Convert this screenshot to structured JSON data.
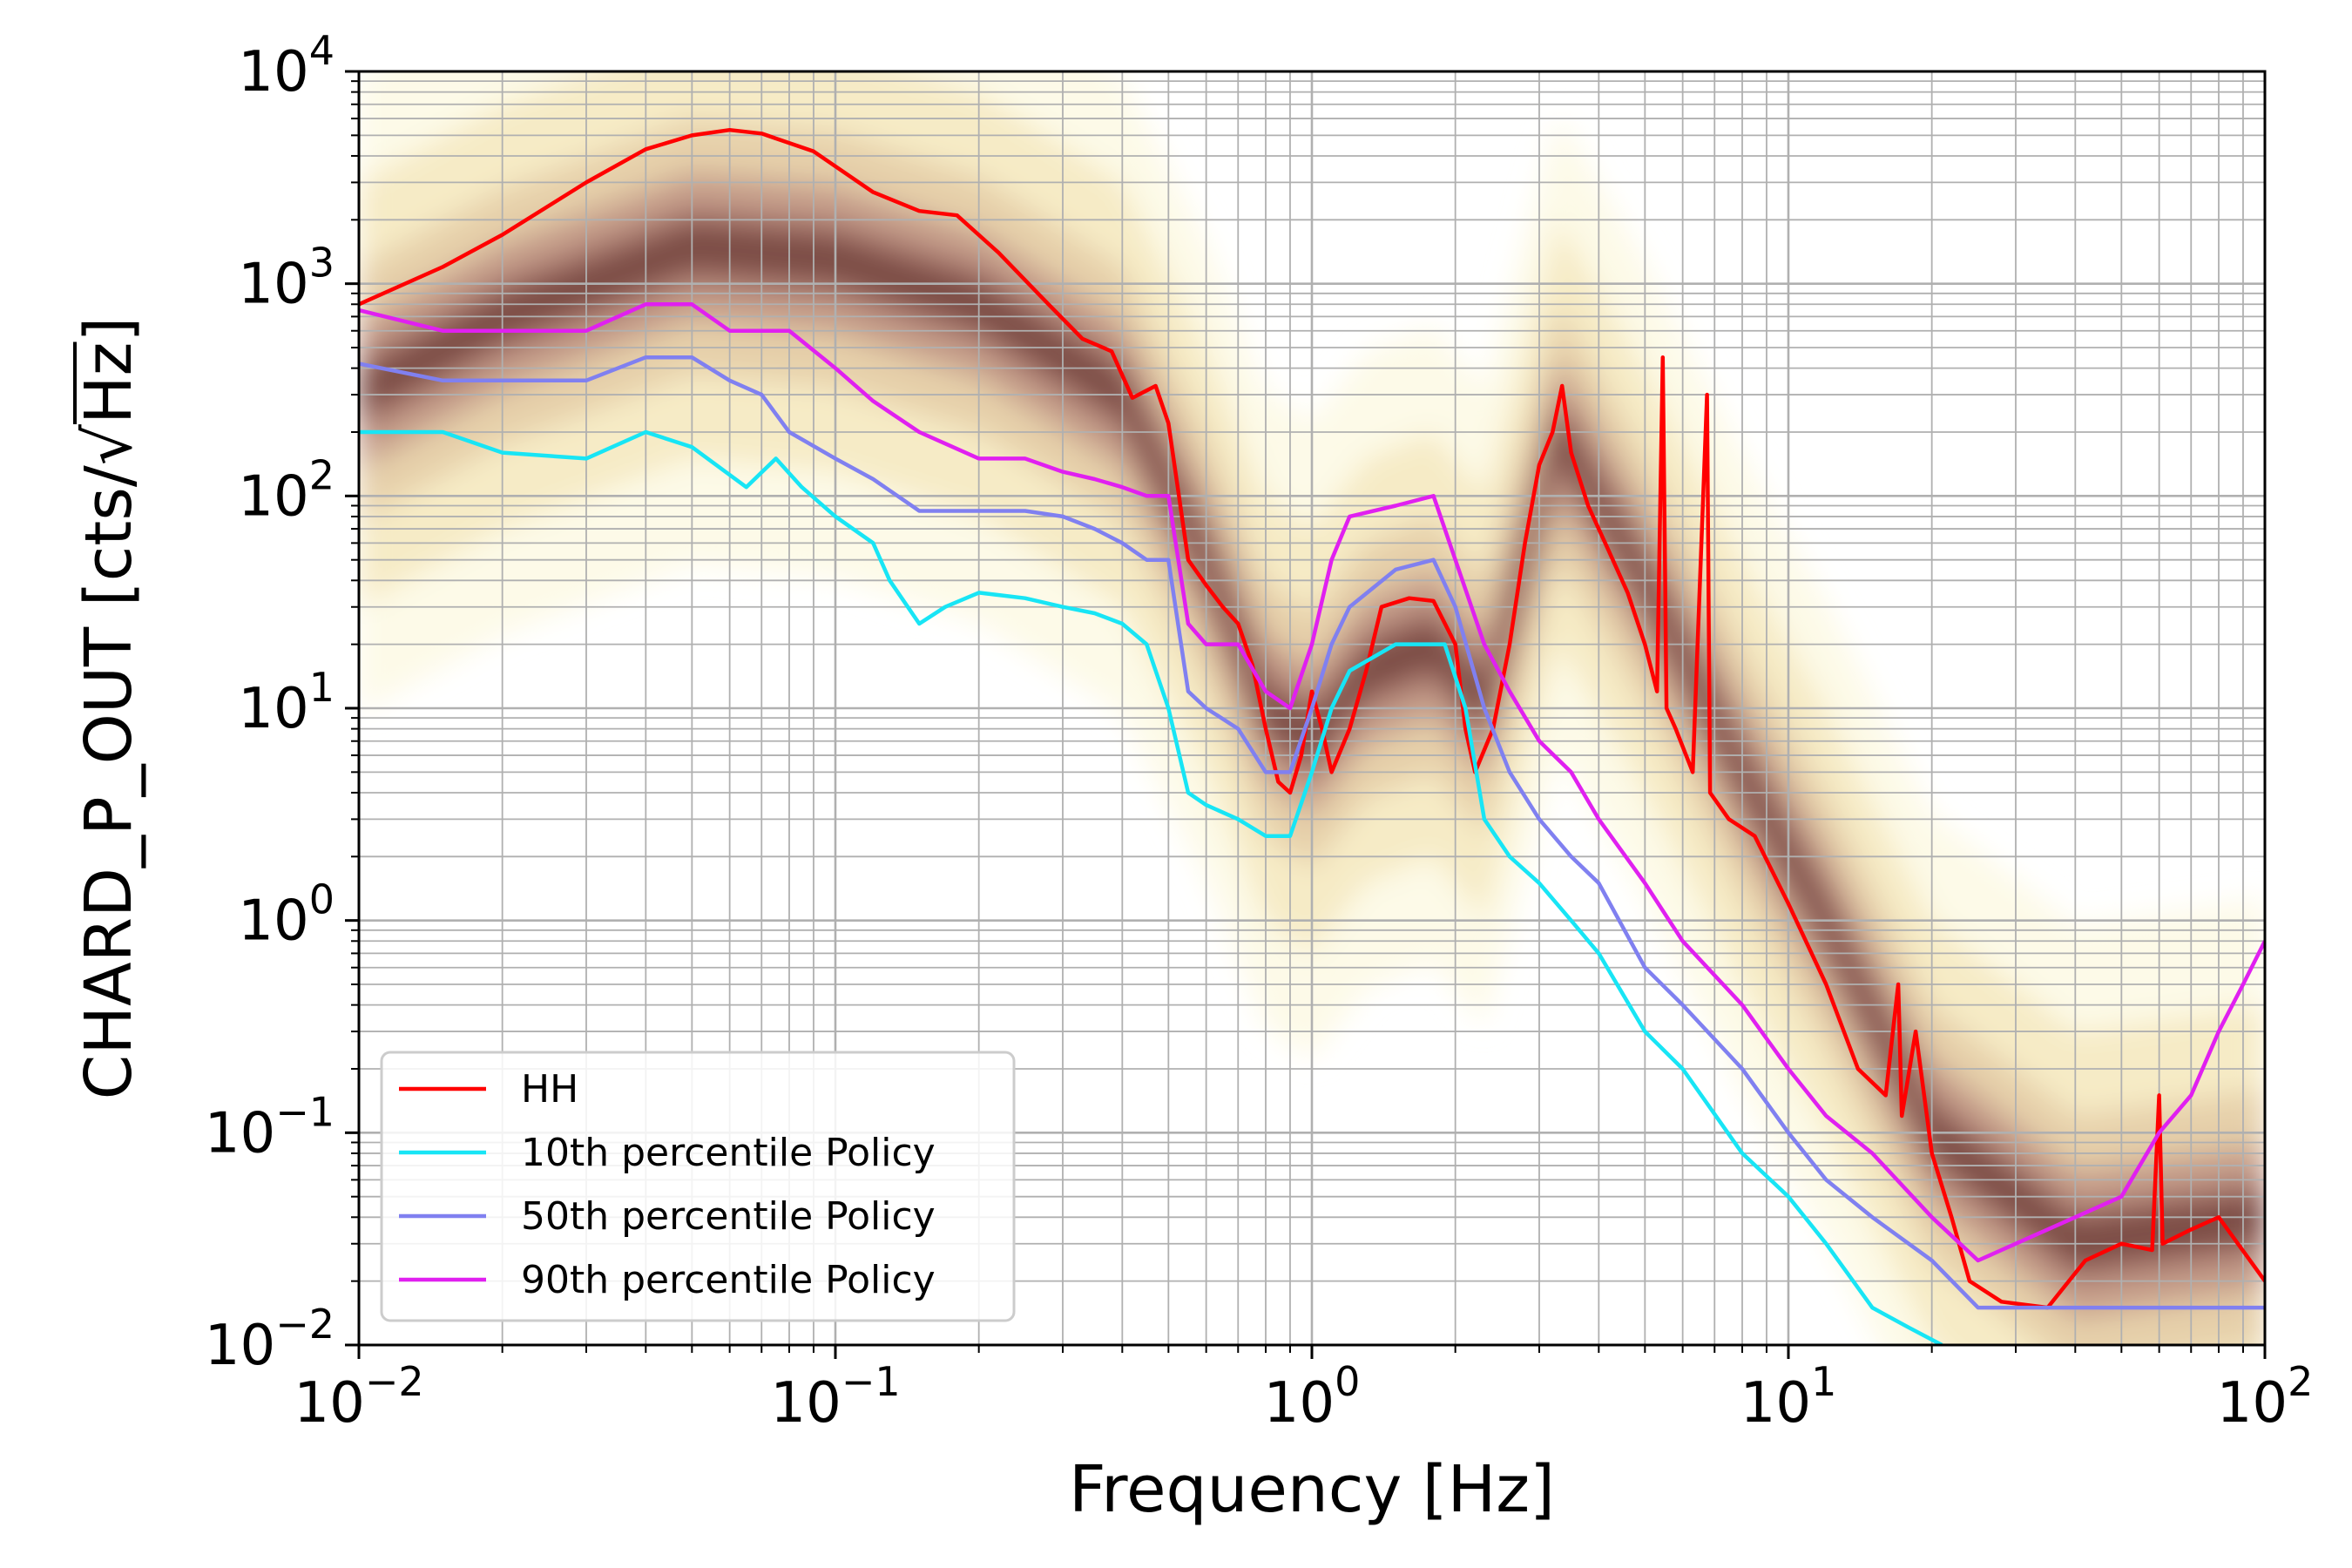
{
  "chart_data": {
    "type": "line",
    "title": "",
    "xlabel": "Frequency [Hz]",
    "ylabel_prefix": "CHARD_P_OUT [cts/",
    "ylabel_radical": "√",
    "ylabel_radicand": "Hz",
    "ylabel_suffix": "]",
    "xscale": "log",
    "yscale": "log",
    "xlim": [
      0.01,
      100
    ],
    "ylim": [
      0.01,
      10000
    ],
    "grid": true,
    "legend_position": "bottom-left",
    "x_ticks": [
      {
        "base": "10",
        "exp": "−2",
        "value": 0.01
      },
      {
        "base": "10",
        "exp": "−1",
        "value": 0.1
      },
      {
        "base": "10",
        "exp": "0",
        "value": 1
      },
      {
        "base": "10",
        "exp": "1",
        "value": 10
      },
      {
        "base": "10",
        "exp": "2",
        "value": 100
      }
    ],
    "y_ticks": [
      {
        "base": "10",
        "exp": "−2",
        "value": 0.01
      },
      {
        "base": "10",
        "exp": "−1",
        "value": 0.1
      },
      {
        "base": "10",
        "exp": "0",
        "value": 1
      },
      {
        "base": "10",
        "exp": "1",
        "value": 10
      },
      {
        "base": "10",
        "exp": "2",
        "value": 100
      },
      {
        "base": "10",
        "exp": "3",
        "value": 1000
      },
      {
        "base": "10",
        "exp": "4",
        "value": 10000
      }
    ],
    "background_density": {
      "description": "spectrogram histogram",
      "colormap": [
        "#fdf9e6",
        "#f3e6b8",
        "#e0c49e",
        "#b98a7f",
        "#8d5a54",
        "#5e2f2b"
      ],
      "ridge": [
        {
          "x": 0.01,
          "y": 300
        },
        {
          "x": 0.02,
          "y": 700
        },
        {
          "x": 0.05,
          "y": 1500
        },
        {
          "x": 0.1,
          "y": 1300
        },
        {
          "x": 0.2,
          "y": 800
        },
        {
          "x": 0.4,
          "y": 300
        },
        {
          "x": 0.6,
          "y": 50
        },
        {
          "x": 0.8,
          "y": 10
        },
        {
          "x": 1.0,
          "y": 7
        },
        {
          "x": 1.3,
          "y": 15
        },
        {
          "x": 1.8,
          "y": 20
        },
        {
          "x": 2.3,
          "y": 10
        },
        {
          "x": 3.3,
          "y": 200
        },
        {
          "x": 5.0,
          "y": 40
        },
        {
          "x": 8.0,
          "y": 5
        },
        {
          "x": 12.0,
          "y": 1
        },
        {
          "x": 20.0,
          "y": 0.1
        },
        {
          "x": 40.0,
          "y": 0.03
        },
        {
          "x": 100.0,
          "y": 0.04
        }
      ]
    },
    "series": [
      {
        "name": "HH",
        "color": "#ff0000",
        "points": [
          [
            0.01,
            800
          ],
          [
            0.015,
            1200
          ],
          [
            0.02,
            1700
          ],
          [
            0.03,
            3000
          ],
          [
            0.04,
            4300
          ],
          [
            0.05,
            5000
          ],
          [
            0.06,
            5300
          ],
          [
            0.07,
            5100
          ],
          [
            0.09,
            4200
          ],
          [
            0.12,
            2700
          ],
          [
            0.15,
            2200
          ],
          [
            0.18,
            2100
          ],
          [
            0.22,
            1400
          ],
          [
            0.28,
            800
          ],
          [
            0.33,
            550
          ],
          [
            0.38,
            480
          ],
          [
            0.42,
            290
          ],
          [
            0.47,
            330
          ],
          [
            0.5,
            220
          ],
          [
            0.55,
            50
          ],
          [
            0.6,
            38
          ],
          [
            0.65,
            30
          ],
          [
            0.7,
            25
          ],
          [
            0.75,
            16
          ],
          [
            0.8,
            8
          ],
          [
            0.85,
            4.5
          ],
          [
            0.9,
            4
          ],
          [
            0.95,
            6
          ],
          [
            1.0,
            12
          ],
          [
            1.05,
            8
          ],
          [
            1.1,
            5
          ],
          [
            1.2,
            8
          ],
          [
            1.3,
            15
          ],
          [
            1.4,
            30
          ],
          [
            1.6,
            33
          ],
          [
            1.8,
            32
          ],
          [
            2.0,
            20
          ],
          [
            2.1,
            8
          ],
          [
            2.2,
            5
          ],
          [
            2.4,
            8
          ],
          [
            2.6,
            20
          ],
          [
            2.8,
            60
          ],
          [
            3.0,
            140
          ],
          [
            3.2,
            200
          ],
          [
            3.35,
            330
          ],
          [
            3.5,
            160
          ],
          [
            3.8,
            90
          ],
          [
            4.2,
            55
          ],
          [
            4.6,
            35
          ],
          [
            5.0,
            20
          ],
          [
            5.3,
            12
          ],
          [
            5.45,
            450
          ],
          [
            5.55,
            10
          ],
          [
            5.8,
            8
          ],
          [
            6.3,
            5
          ],
          [
            6.75,
            300
          ],
          [
            6.85,
            4
          ],
          [
            7.5,
            3
          ],
          [
            8.5,
            2.5
          ],
          [
            10.0,
            1.2
          ],
          [
            12.0,
            0.5
          ],
          [
            14.0,
            0.2
          ],
          [
            16.0,
            0.15
          ],
          [
            17.0,
            0.5
          ],
          [
            17.3,
            0.12
          ],
          [
            18.5,
            0.3
          ],
          [
            20.0,
            0.08
          ],
          [
            22.0,
            0.04
          ],
          [
            24.0,
            0.02
          ],
          [
            28.0,
            0.016
          ],
          [
            35.0,
            0.015
          ],
          [
            42.0,
            0.025
          ],
          [
            50.0,
            0.03
          ],
          [
            58.0,
            0.028
          ],
          [
            60.0,
            0.15
          ],
          [
            61.0,
            0.03
          ],
          [
            70.0,
            0.035
          ],
          [
            80.0,
            0.04
          ],
          [
            100.0,
            0.02
          ]
        ]
      },
      {
        "name": "10th percentile Policy",
        "color": "#18e5f5",
        "points": [
          [
            0.01,
            200
          ],
          [
            0.015,
            200
          ],
          [
            0.02,
            160
          ],
          [
            0.03,
            150
          ],
          [
            0.04,
            200
          ],
          [
            0.05,
            170
          ],
          [
            0.065,
            110
          ],
          [
            0.075,
            150
          ],
          [
            0.085,
            110
          ],
          [
            0.1,
            80
          ],
          [
            0.12,
            60
          ],
          [
            0.13,
            40
          ],
          [
            0.15,
            25
          ],
          [
            0.17,
            30
          ],
          [
            0.2,
            35
          ],
          [
            0.25,
            33
          ],
          [
            0.3,
            30
          ],
          [
            0.35,
            28
          ],
          [
            0.4,
            25
          ],
          [
            0.45,
            20
          ],
          [
            0.5,
            10
          ],
          [
            0.55,
            4
          ],
          [
            0.6,
            3.5
          ],
          [
            0.7,
            3.0
          ],
          [
            0.8,
            2.5
          ],
          [
            0.9,
            2.5
          ],
          [
            1.0,
            5
          ],
          [
            1.1,
            10
          ],
          [
            1.2,
            15
          ],
          [
            1.5,
            20
          ],
          [
            1.9,
            20
          ],
          [
            2.1,
            10
          ],
          [
            2.3,
            3
          ],
          [
            2.6,
            2
          ],
          [
            3.0,
            1.5
          ],
          [
            3.5,
            1.0
          ],
          [
            4.0,
            0.7
          ],
          [
            5.0,
            0.3
          ],
          [
            6.0,
            0.2
          ],
          [
            8.0,
            0.08
          ],
          [
            10.0,
            0.05
          ],
          [
            12.0,
            0.03
          ],
          [
            15.0,
            0.015
          ],
          [
            18.0,
            0.012
          ],
          [
            21.0,
            0.01
          ]
        ]
      },
      {
        "name": "50th percentile Policy",
        "color": "#8080f0",
        "points": [
          [
            0.01,
            420
          ],
          [
            0.015,
            350
          ],
          [
            0.02,
            350
          ],
          [
            0.03,
            350
          ],
          [
            0.04,
            450
          ],
          [
            0.05,
            450
          ],
          [
            0.06,
            350
          ],
          [
            0.07,
            300
          ],
          [
            0.08,
            200
          ],
          [
            0.1,
            150
          ],
          [
            0.12,
            120
          ],
          [
            0.15,
            85
          ],
          [
            0.2,
            85
          ],
          [
            0.25,
            85
          ],
          [
            0.3,
            80
          ],
          [
            0.35,
            70
          ],
          [
            0.4,
            60
          ],
          [
            0.45,
            50
          ],
          [
            0.5,
            50
          ],
          [
            0.55,
            12
          ],
          [
            0.6,
            10
          ],
          [
            0.7,
            8
          ],
          [
            0.8,
            5
          ],
          [
            0.9,
            5
          ],
          [
            1.0,
            10
          ],
          [
            1.1,
            20
          ],
          [
            1.2,
            30
          ],
          [
            1.5,
            45
          ],
          [
            1.8,
            50
          ],
          [
            2.0,
            30
          ],
          [
            2.3,
            10
          ],
          [
            2.6,
            5
          ],
          [
            3.0,
            3
          ],
          [
            3.5,
            2
          ],
          [
            4.0,
            1.5
          ],
          [
            5.0,
            0.6
          ],
          [
            6.0,
            0.4
          ],
          [
            8.0,
            0.2
          ],
          [
            10.0,
            0.1
          ],
          [
            12.0,
            0.06
          ],
          [
            15.0,
            0.04
          ],
          [
            20.0,
            0.025
          ],
          [
            25.0,
            0.015
          ],
          [
            40.0,
            0.015
          ],
          [
            100.0,
            0.015
          ]
        ]
      },
      {
        "name": "90th percentile Policy",
        "color": "#e020f0",
        "points": [
          [
            0.01,
            750
          ],
          [
            0.015,
            600
          ],
          [
            0.02,
            600
          ],
          [
            0.03,
            600
          ],
          [
            0.04,
            800
          ],
          [
            0.05,
            800
          ],
          [
            0.06,
            600
          ],
          [
            0.08,
            600
          ],
          [
            0.1,
            400
          ],
          [
            0.12,
            280
          ],
          [
            0.15,
            200
          ],
          [
            0.2,
            150
          ],
          [
            0.25,
            150
          ],
          [
            0.3,
            130
          ],
          [
            0.35,
            120
          ],
          [
            0.4,
            110
          ],
          [
            0.45,
            100
          ],
          [
            0.5,
            100
          ],
          [
            0.55,
            25
          ],
          [
            0.6,
            20
          ],
          [
            0.7,
            20
          ],
          [
            0.8,
            12
          ],
          [
            0.9,
            10
          ],
          [
            1.0,
            20
          ],
          [
            1.1,
            50
          ],
          [
            1.2,
            80
          ],
          [
            1.5,
            90
          ],
          [
            1.8,
            100
          ],
          [
            2.0,
            50
          ],
          [
            2.3,
            20
          ],
          [
            2.6,
            12
          ],
          [
            3.0,
            7
          ],
          [
            3.5,
            5
          ],
          [
            4.0,
            3
          ],
          [
            5.0,
            1.5
          ],
          [
            6.0,
            0.8
          ],
          [
            8.0,
            0.4
          ],
          [
            10.0,
            0.2
          ],
          [
            12.0,
            0.12
          ],
          [
            15.0,
            0.08
          ],
          [
            20.0,
            0.04
          ],
          [
            25.0,
            0.025
          ],
          [
            30.0,
            0.03
          ],
          [
            40.0,
            0.04
          ],
          [
            50.0,
            0.05
          ],
          [
            60.0,
            0.1
          ],
          [
            70.0,
            0.15
          ],
          [
            80.0,
            0.3
          ],
          [
            90.0,
            0.5
          ],
          [
            100.0,
            0.8
          ]
        ]
      }
    ]
  }
}
